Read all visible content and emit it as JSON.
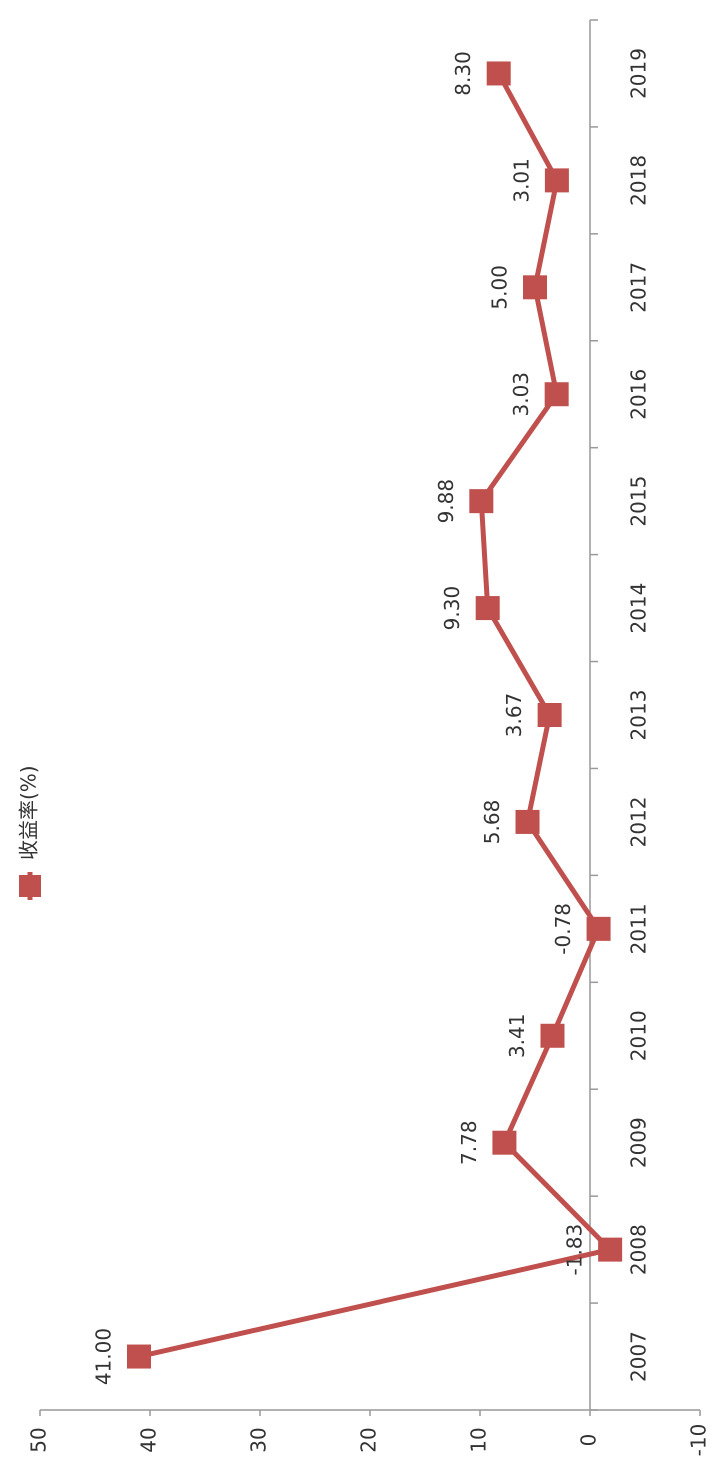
{
  "chart_data": {
    "type": "line",
    "categories": [
      "2007",
      "2008",
      "2009",
      "2010",
      "2011",
      "2012",
      "2013",
      "2014",
      "2015",
      "2016",
      "2017",
      "2018",
      "2019"
    ],
    "series": [
      {
        "name": "收益率(%)",
        "color": "#c0504d",
        "values": [
          41,
          -1.83,
          7.78,
          3.41,
          -0.78,
          5.68,
          3.67,
          9.3,
          9.88,
          3.03,
          5,
          3.01,
          8.3
        ],
        "value_labels": [
          "41.00",
          "-1.83",
          "7.78",
          "3.41",
          "-0.78",
          "5.68",
          "3.67",
          "9.30",
          "9.88",
          "3.03",
          "5.00",
          "3.01",
          "8.30"
        ]
      }
    ],
    "ylim": [
      -10,
      50
    ],
    "yticks": [
      -10,
      0,
      10,
      20,
      30,
      40,
      50
    ],
    "legend": "top",
    "grid": false
  }
}
